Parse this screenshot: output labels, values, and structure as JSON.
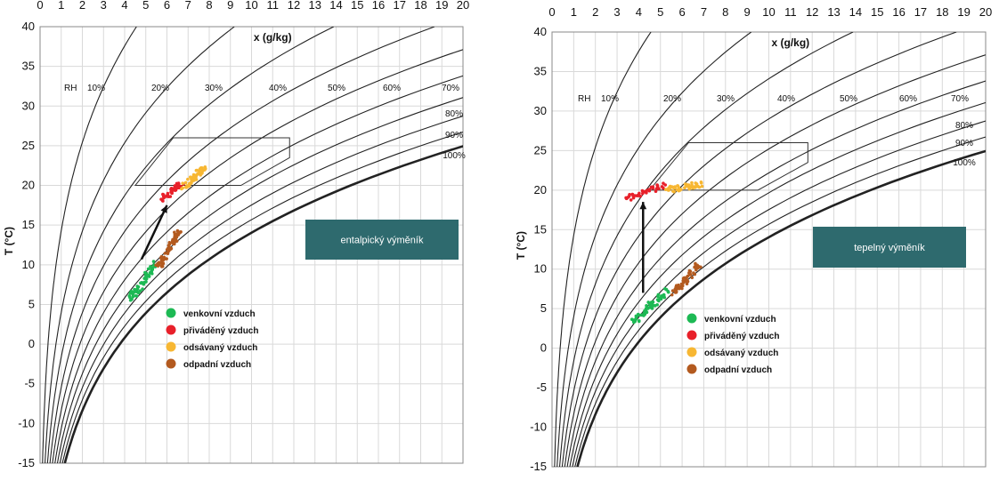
{
  "panels": [
    {
      "label": "entalpický výměník",
      "chart_data": {
        "type": "scatter",
        "title": "",
        "xlabel": "x (g/kg)",
        "ylabel": "T (°C)",
        "xlim": [
          0,
          20
        ],
        "ylim": [
          -15,
          40
        ],
        "x_ticks": [
          0,
          1,
          2,
          3,
          4,
          5,
          6,
          7,
          8,
          9,
          10,
          11,
          12,
          13,
          14,
          15,
          16,
          17,
          18,
          19,
          20
        ],
        "y_ticks": [
          40,
          35,
          30,
          25,
          20,
          15,
          10,
          5,
          0,
          -5,
          -10,
          -15
        ],
        "grid": true,
        "rh_curves": {
          "prefix_label": "RH",
          "labels": [
            "10%",
            "20%",
            "30%",
            "40%",
            "50%",
            "60%",
            "70%",
            "80%",
            "90%",
            "100%"
          ],
          "values": [
            10,
            20,
            30,
            40,
            50,
            60,
            70,
            80,
            90,
            100
          ]
        },
        "comfort_zone": [
          [
            4.5,
            20
          ],
          [
            6.3,
            26
          ],
          [
            11.8,
            26
          ],
          [
            11.8,
            23.5
          ],
          [
            9.5,
            20
          ]
        ],
        "arrow": {
          "from": [
            4.8,
            10.7
          ],
          "to": [
            6.0,
            17.5
          ]
        },
        "series": [
          {
            "name": "venkovní vzduch",
            "color": "#1db954",
            "center": [
              4.9,
              8.0
            ],
            "spread": [
              0.6,
              2.2
            ],
            "n": 60
          },
          {
            "name": "přiváděný vzduch",
            "color": "#e8202a",
            "center": [
              6.3,
              19.3
            ],
            "spread": [
              0.5,
              1.0
            ],
            "n": 40
          },
          {
            "name": "odsávaný vzduch",
            "color": "#f7b733",
            "center": [
              7.3,
              21.0
            ],
            "spread": [
              0.5,
              1.2
            ],
            "n": 55
          },
          {
            "name": "odpadní vzduch",
            "color": "#b35a1f",
            "center": [
              6.1,
              12.0
            ],
            "spread": [
              0.5,
              2.3
            ],
            "n": 60
          }
        ]
      }
    },
    {
      "label": "tepelný výměník",
      "chart_data": {
        "type": "scatter",
        "title": "",
        "xlabel": "x (g/kg)",
        "ylabel": "T (°C)",
        "xlim": [
          0,
          20
        ],
        "ylim": [
          -15,
          40
        ],
        "x_ticks": [
          0,
          1,
          2,
          3,
          4,
          5,
          6,
          7,
          8,
          9,
          10,
          11,
          12,
          13,
          14,
          15,
          16,
          17,
          18,
          19,
          20
        ],
        "y_ticks": [
          40,
          35,
          30,
          25,
          20,
          15,
          10,
          5,
          0,
          -5,
          -10,
          -15
        ],
        "grid": true,
        "rh_curves": {
          "prefix_label": "RH",
          "labels": [
            "10%",
            "20%",
            "30%",
            "40%",
            "50%",
            "60%",
            "70%",
            "80%",
            "90%",
            "100%"
          ],
          "values": [
            10,
            20,
            30,
            40,
            50,
            60,
            70,
            80,
            90,
            100
          ]
        },
        "comfort_zone": [
          [
            4.5,
            20
          ],
          [
            6.3,
            26
          ],
          [
            11.8,
            26
          ],
          [
            11.8,
            23.5
          ],
          [
            9.5,
            20
          ]
        ],
        "arrow": {
          "from": [
            4.2,
            7.0
          ],
          "to": [
            4.2,
            18.5
          ]
        },
        "series": [
          {
            "name": "venkovní vzduch",
            "color": "#1db954",
            "center": [
              4.6,
              5.5
            ],
            "spread": [
              0.8,
              2.0
            ],
            "n": 60
          },
          {
            "name": "přiváděný vzduch",
            "color": "#e8202a",
            "center": [
              4.3,
              19.8
            ],
            "spread": [
              0.9,
              0.8
            ],
            "n": 40
          },
          {
            "name": "odsávaný vzduch",
            "color": "#f7b733",
            "center": [
              6.1,
              20.4
            ],
            "spread": [
              0.8,
              0.4
            ],
            "n": 55
          },
          {
            "name": "odpadní vzduch",
            "color": "#b35a1f",
            "center": [
              6.2,
              8.8
            ],
            "spread": [
              0.6,
              1.8
            ],
            "n": 60
          }
        ]
      }
    }
  ]
}
